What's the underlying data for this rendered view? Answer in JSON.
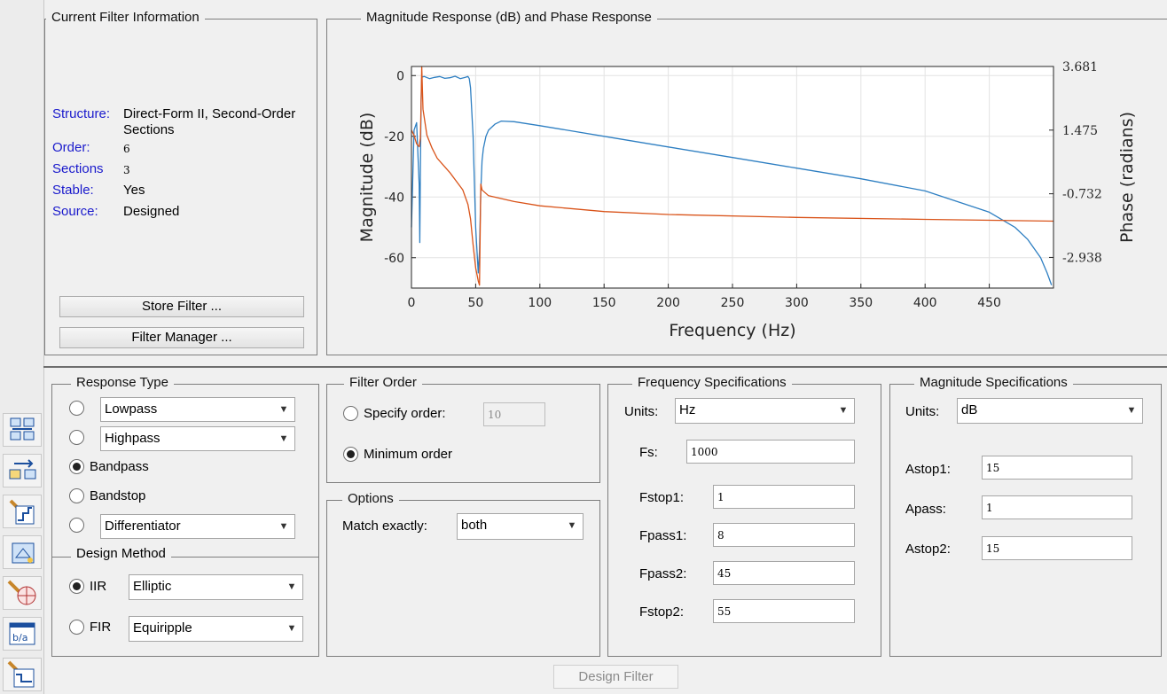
{
  "info_panel": {
    "title": "Current Filter Information",
    "rows": [
      {
        "label": "Structure:",
        "value": "Direct-Form II, Second-Order Sections"
      },
      {
        "label": "Order:",
        "value": "6"
      },
      {
        "label": "Sections",
        "value": "3"
      },
      {
        "label": "Stable:",
        "value": "Yes"
      },
      {
        "label": "Source:",
        "value": "Designed"
      }
    ],
    "store_button": "Store Filter ...",
    "manager_button": "Filter Manager ..."
  },
  "plot_panel": {
    "title": "Magnitude Response (dB) and Phase Response"
  },
  "chart_data": {
    "type": "line",
    "title": "Magnitude Response (dB) and Phase Response",
    "xlabel": "Frequency (Hz)",
    "ylabel": "Magnitude (dB)",
    "y2label": "Phase (radians)",
    "xlim": [
      0,
      500
    ],
    "ylim": [
      -70,
      3
    ],
    "y2lim": [
      -4.0,
      3.681
    ],
    "xticks": [
      "0",
      "50",
      "100",
      "150",
      "200",
      "250",
      "300",
      "350",
      "400",
      "450"
    ],
    "yticks": [
      "0",
      "-20",
      "-40",
      "-60"
    ],
    "y2ticks": [
      "3.681",
      "1.475",
      "-0.732",
      "-2.938"
    ],
    "grid": true,
    "series": [
      {
        "name": "",
        "axis": "left",
        "color": "#2e7fc2",
        "x": [
          0,
          2,
          4,
          6,
          6.5,
          7,
          7.5,
          8,
          10,
          14,
          18,
          22,
          26,
          30,
          34,
          38,
          42,
          44,
          45,
          46,
          48,
          50,
          52,
          53,
          54,
          55,
          56,
          58,
          60,
          65,
          70,
          80,
          100,
          150,
          200,
          250,
          300,
          350,
          400,
          450,
          470,
          480,
          490,
          495,
          498.5
        ],
        "values": [
          -50,
          -18,
          -15.5,
          -36,
          -55,
          -30,
          -8,
          -0.5,
          -0.3,
          -1.0,
          -0.6,
          -0.3,
          -0.9,
          -0.7,
          -0.2,
          -1.0,
          -0.6,
          -0.3,
          -1.0,
          -4,
          -20,
          -50,
          -65,
          -58,
          -38,
          -28,
          -24,
          -20,
          -18,
          -16,
          -15,
          -15.2,
          -16.5,
          -20,
          -23.5,
          -27,
          -30.5,
          -34,
          -38,
          -45,
          -50,
          -54,
          -60,
          -65,
          -69
        ]
      },
      {
        "name": "",
        "axis": "right",
        "color": "#d95319",
        "x": [
          0,
          2,
          4,
          6,
          7,
          7.5,
          8,
          9,
          12,
          16,
          20,
          25,
          30,
          35,
          40,
          44,
          46,
          48,
          50,
          52,
          53,
          54,
          55,
          60,
          80,
          100,
          150,
          200,
          300,
          400,
          500
        ],
        "values": [
          1.475,
          1.3,
          1.0,
          0.9,
          1.2,
          2.5,
          3.681,
          2.2,
          1.3,
          0.85,
          0.5,
          0.25,
          0.0,
          -0.3,
          -0.6,
          -1.1,
          -1.6,
          -2.5,
          -3.3,
          -3.75,
          -3.9,
          -0.4,
          -0.6,
          -0.8,
          -1.0,
          -1.15,
          -1.35,
          -1.45,
          -1.55,
          -1.62,
          -1.68
        ]
      }
    ]
  },
  "response_type": {
    "title": "Response Type",
    "options": [
      {
        "label": "Lowpass",
        "kind": "select"
      },
      {
        "label": "Highpass",
        "kind": "select"
      },
      {
        "label": "Bandpass",
        "kind": "text"
      },
      {
        "label": "Bandstop",
        "kind": "text"
      },
      {
        "label": "Differentiator",
        "kind": "select"
      }
    ],
    "selected": "Bandpass"
  },
  "design_method": {
    "title": "Design Method",
    "iir_label": "IIR",
    "iir_value": "Elliptic",
    "fir_label": "FIR",
    "fir_value": "Equiripple",
    "selected": "IIR"
  },
  "filter_order": {
    "title": "Filter Order",
    "specify_label": "Specify order:",
    "specify_value": "10",
    "minimum_label": "Minimum order",
    "selected": "Minimum order"
  },
  "options": {
    "title": "Options",
    "match_label": "Match exactly:",
    "match_value": "both"
  },
  "freq_specs": {
    "title": "Frequency Specifications",
    "units_label": "Units:",
    "units_value": "Hz",
    "fs_label": "Fs:",
    "fs_value": "1000",
    "fstop1_label": "Fstop1:",
    "fstop1_value": "1",
    "fpass1_label": "Fpass1:",
    "fpass1_value": "8",
    "fpass2_label": "Fpass2:",
    "fpass2_value": "45",
    "fstop2_label": "Fstop2:",
    "fstop2_value": "55"
  },
  "mag_specs": {
    "title": "Magnitude Specifications",
    "units_label": "Units:",
    "units_value": "dB",
    "astop1_label": "Astop1:",
    "astop1_value": "15",
    "apass_label": "Apass:",
    "apass_value": "1",
    "astop2_label": "Astop2:",
    "astop2_value": "15"
  },
  "design_button": "Design Filter",
  "toolbar_icons": [
    "transform-filter-icon",
    "convert-structure-icon",
    "pole-zero-editor-icon",
    "realize-model-icon",
    "design-pole-icon",
    "import-filter-icon",
    "multirate-design-icon"
  ]
}
